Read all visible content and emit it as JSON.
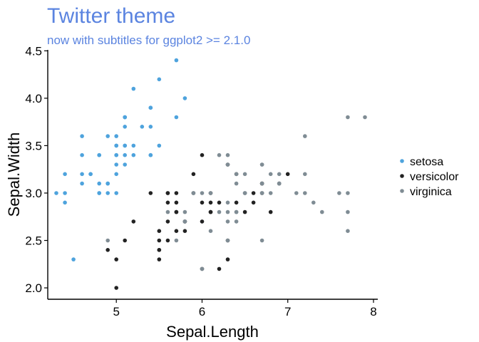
{
  "chart_data": {
    "type": "scatter",
    "title": "Twitter theme",
    "subtitle": "now with subtitles for ggplot2 >= 2.1.0",
    "xlabel": "Sepal.Length",
    "ylabel": "Sepal.Width",
    "xlim": [
      4.2,
      8.05
    ],
    "ylim": [
      1.88,
      4.51
    ],
    "x_ticks": [
      5,
      6,
      7,
      8
    ],
    "x_tick_labels": [
      "5",
      "6",
      "7",
      "8"
    ],
    "y_ticks": [
      2.0,
      2.5,
      3.0,
      3.5,
      4.0,
      4.5
    ],
    "y_tick_labels": [
      "2.0",
      "2.5",
      "3.0",
      "3.5",
      "4.0",
      "4.5"
    ],
    "grid": false,
    "legend_position": "right",
    "title_color": "#5b84e0",
    "series": [
      {
        "name": "setosa",
        "color": "#4ea3dd",
        "points": [
          [
            5.1,
            3.5
          ],
          [
            4.9,
            3.0
          ],
          [
            4.7,
            3.2
          ],
          [
            4.6,
            3.1
          ],
          [
            5.0,
            3.6
          ],
          [
            5.4,
            3.9
          ],
          [
            4.6,
            3.4
          ],
          [
            5.0,
            3.4
          ],
          [
            4.4,
            2.9
          ],
          [
            4.9,
            3.1
          ],
          [
            5.4,
            3.7
          ],
          [
            4.8,
            3.4
          ],
          [
            4.8,
            3.0
          ],
          [
            4.3,
            3.0
          ],
          [
            5.8,
            4.0
          ],
          [
            5.7,
            4.4
          ],
          [
            5.4,
            3.9
          ],
          [
            5.1,
            3.5
          ],
          [
            5.7,
            3.8
          ],
          [
            5.1,
            3.8
          ],
          [
            5.4,
            3.4
          ],
          [
            5.1,
            3.7
          ],
          [
            4.6,
            3.6
          ],
          [
            5.1,
            3.3
          ],
          [
            4.8,
            3.4
          ],
          [
            5.0,
            3.0
          ],
          [
            5.0,
            3.4
          ],
          [
            5.2,
            3.5
          ],
          [
            5.2,
            3.4
          ],
          [
            4.7,
            3.2
          ],
          [
            4.8,
            3.1
          ],
          [
            5.4,
            3.4
          ],
          [
            5.2,
            4.1
          ],
          [
            5.5,
            4.2
          ],
          [
            4.9,
            3.1
          ],
          [
            5.0,
            3.2
          ],
          [
            5.5,
            3.5
          ],
          [
            4.9,
            3.6
          ],
          [
            4.4,
            3.0
          ],
          [
            5.1,
            3.4
          ],
          [
            5.0,
            3.5
          ],
          [
            4.5,
            2.3
          ],
          [
            4.4,
            3.2
          ],
          [
            5.0,
            3.5
          ],
          [
            5.1,
            3.8
          ],
          [
            4.8,
            3.0
          ],
          [
            5.1,
            3.8
          ],
          [
            4.6,
            3.2
          ],
          [
            5.3,
            3.7
          ],
          [
            5.0,
            3.3
          ]
        ]
      },
      {
        "name": "versicolor",
        "color": "#222222",
        "points": [
          [
            7.0,
            3.2
          ],
          [
            6.4,
            3.2
          ],
          [
            6.9,
            3.1
          ],
          [
            5.5,
            2.3
          ],
          [
            6.5,
            2.8
          ],
          [
            5.7,
            2.8
          ],
          [
            6.3,
            3.3
          ],
          [
            4.9,
            2.4
          ],
          [
            6.6,
            2.9
          ],
          [
            5.2,
            2.7
          ],
          [
            5.0,
            2.0
          ],
          [
            5.9,
            3.0
          ],
          [
            6.0,
            2.2
          ],
          [
            6.1,
            2.9
          ],
          [
            5.6,
            2.9
          ],
          [
            6.7,
            3.1
          ],
          [
            5.6,
            3.0
          ],
          [
            5.8,
            2.7
          ],
          [
            6.2,
            2.2
          ],
          [
            5.6,
            2.5
          ],
          [
            5.9,
            3.2
          ],
          [
            6.1,
            2.8
          ],
          [
            6.3,
            2.5
          ],
          [
            6.1,
            2.8
          ],
          [
            6.4,
            2.9
          ],
          [
            6.6,
            3.0
          ],
          [
            6.8,
            2.8
          ],
          [
            6.7,
            3.0
          ],
          [
            6.0,
            2.9
          ],
          [
            5.7,
            2.6
          ],
          [
            5.5,
            2.4
          ],
          [
            5.5,
            2.4
          ],
          [
            5.8,
            2.7
          ],
          [
            6.0,
            2.7
          ],
          [
            5.4,
            3.0
          ],
          [
            6.0,
            3.4
          ],
          [
            6.7,
            3.1
          ],
          [
            6.3,
            2.3
          ],
          [
            5.6,
            3.0
          ],
          [
            5.5,
            2.5
          ],
          [
            5.5,
            2.6
          ],
          [
            6.1,
            3.0
          ],
          [
            5.8,
            2.6
          ],
          [
            5.0,
            2.3
          ],
          [
            5.6,
            2.7
          ],
          [
            5.7,
            3.0
          ],
          [
            5.7,
            2.9
          ],
          [
            6.2,
            2.9
          ],
          [
            5.1,
            2.5
          ],
          [
            5.7,
            2.8
          ]
        ]
      },
      {
        "name": "virginica",
        "color": "#7f8c94",
        "points": [
          [
            6.3,
            3.3
          ],
          [
            5.8,
            2.7
          ],
          [
            7.1,
            3.0
          ],
          [
            6.3,
            2.9
          ],
          [
            6.5,
            3.0
          ],
          [
            7.6,
            3.0
          ],
          [
            4.9,
            2.5
          ],
          [
            7.3,
            2.9
          ],
          [
            6.7,
            2.5
          ],
          [
            7.2,
            3.6
          ],
          [
            6.5,
            3.2
          ],
          [
            6.4,
            2.7
          ],
          [
            6.8,
            3.0
          ],
          [
            5.7,
            2.5
          ],
          [
            5.8,
            2.8
          ],
          [
            6.4,
            3.2
          ],
          [
            6.5,
            3.0
          ],
          [
            7.7,
            3.8
          ],
          [
            7.7,
            2.6
          ],
          [
            6.0,
            2.2
          ],
          [
            6.9,
            3.2
          ],
          [
            5.6,
            2.8
          ],
          [
            7.7,
            2.8
          ],
          [
            6.3,
            2.7
          ],
          [
            6.7,
            3.3
          ],
          [
            7.2,
            3.2
          ],
          [
            6.2,
            2.8
          ],
          [
            6.1,
            3.0
          ],
          [
            6.4,
            2.8
          ],
          [
            7.2,
            3.0
          ],
          [
            7.4,
            2.8
          ],
          [
            7.9,
            3.8
          ],
          [
            6.4,
            2.8
          ],
          [
            6.3,
            2.8
          ],
          [
            6.1,
            2.6
          ],
          [
            7.7,
            3.0
          ],
          [
            6.3,
            3.4
          ],
          [
            6.4,
            3.1
          ],
          [
            6.0,
            3.0
          ],
          [
            6.9,
            3.1
          ],
          [
            6.7,
            3.1
          ],
          [
            6.9,
            3.1
          ],
          [
            5.8,
            2.7
          ],
          [
            6.8,
            3.2
          ],
          [
            6.7,
            3.3
          ],
          [
            6.7,
            3.0
          ],
          [
            6.3,
            2.5
          ],
          [
            6.5,
            3.0
          ],
          [
            6.2,
            3.4
          ],
          [
            5.9,
            3.0
          ]
        ]
      }
    ]
  }
}
